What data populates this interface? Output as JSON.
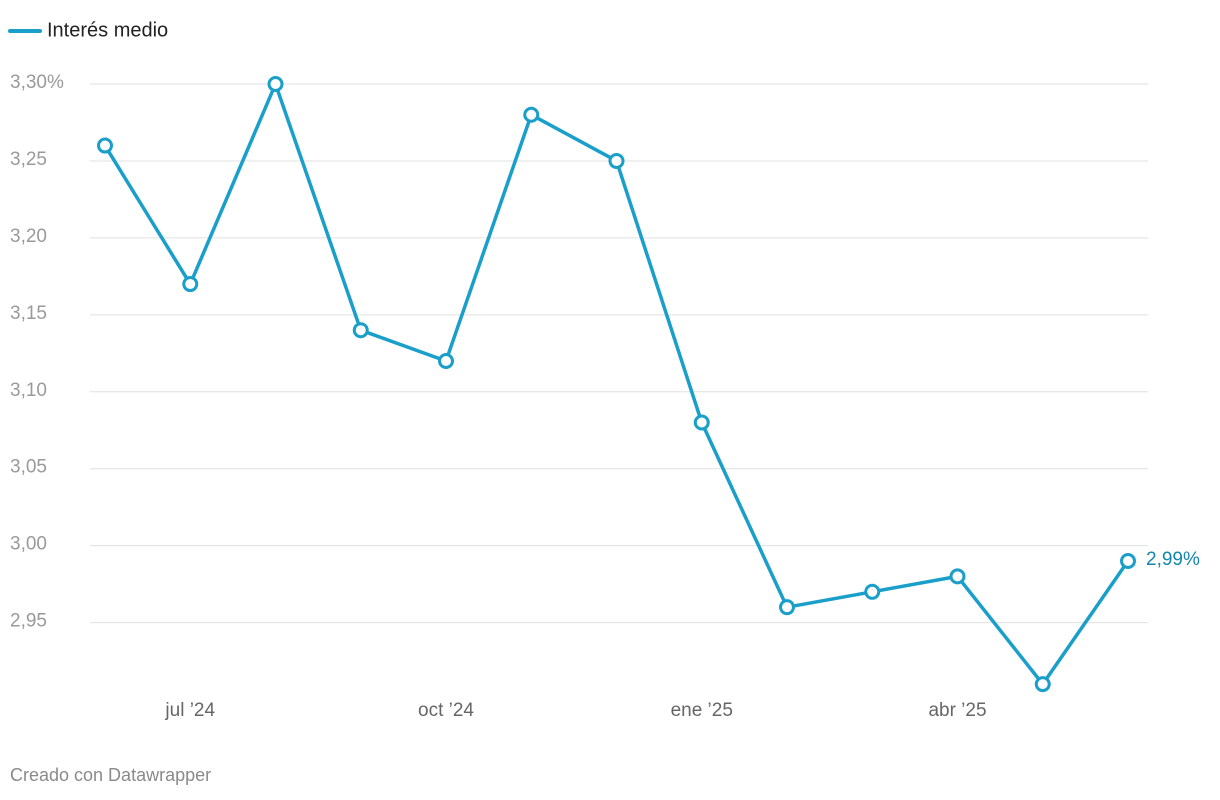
{
  "chart_data": {
    "type": "line",
    "legend": "Interés medio",
    "x": [
      "2024-06",
      "2024-07",
      "2024-08",
      "2024-09",
      "2024-10",
      "2024-11",
      "2024-12",
      "2025-01",
      "2025-02",
      "2025-03",
      "2025-04",
      "2025-05",
      "2025-06"
    ],
    "series": [
      {
        "name": "Interés medio",
        "color": "#1a9fcb",
        "values": [
          3.26,
          3.17,
          3.3,
          3.14,
          3.12,
          3.28,
          3.25,
          3.08,
          2.96,
          2.97,
          2.98,
          2.91,
          2.99
        ],
        "value_labels": [
          null,
          null,
          null,
          null,
          null,
          null,
          null,
          null,
          null,
          null,
          null,
          null,
          "2,99%"
        ]
      }
    ],
    "ylim": [
      2.9,
      3.3
    ],
    "yticks": [
      {
        "value": 3.3,
        "label": "3,30%"
      },
      {
        "value": 3.25,
        "label": "3,25"
      },
      {
        "value": 3.2,
        "label": "3,20"
      },
      {
        "value": 3.15,
        "label": "3,15"
      },
      {
        "value": 3.1,
        "label": "3,10"
      },
      {
        "value": 3.05,
        "label": "3,05"
      },
      {
        "value": 3.0,
        "label": "3,00"
      },
      {
        "value": 2.95,
        "label": "2,95"
      }
    ],
    "xticks": [
      {
        "value": "2024-07",
        "label": "jul ’24"
      },
      {
        "value": "2024-10",
        "label": "oct ’24"
      },
      {
        "value": "2025-01",
        "label": "ene ’25"
      },
      {
        "value": "2025-04",
        "label": "abr ’25"
      }
    ],
    "grid": true,
    "footer": "Creado con Datawrapper"
  }
}
